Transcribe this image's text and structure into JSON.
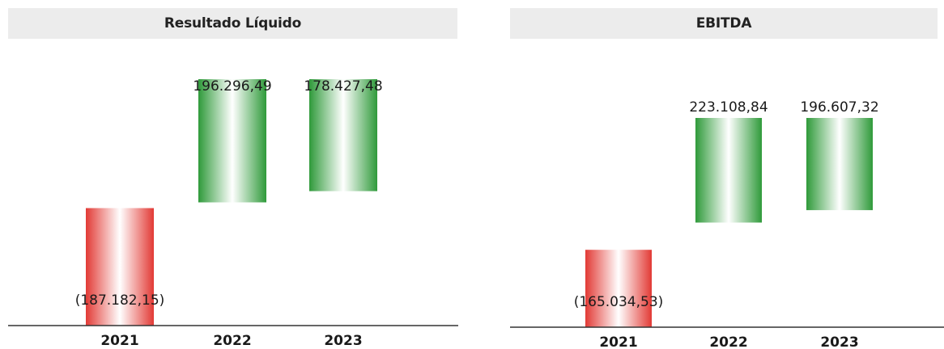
{
  "chart_data": [
    {
      "type": "bar",
      "title": "Resultado Líquido",
      "categories": [
        "2021",
        "2022",
        "2023"
      ],
      "values": [
        -187182.15,
        196296.49,
        178427.48
      ],
      "value_labels": [
        "(187.182,15)",
        "196.296,49",
        "178.427,48"
      ],
      "colors": {
        "negative": "#e23a35",
        "positive": "#2f9a3a"
      },
      "grid": false,
      "legend": "none"
    },
    {
      "type": "bar",
      "title": "EBITDA",
      "categories": [
        "2021",
        "2022",
        "2023"
      ],
      "values": [
        -165034.53,
        223108.84,
        196607.32
      ],
      "value_labels": [
        "(165.034,53)",
        "223.108,84",
        "196.607,32"
      ],
      "colors": {
        "negative": "#e23a35",
        "positive": "#2f9a3a"
      },
      "grid": false,
      "legend": "none"
    }
  ]
}
